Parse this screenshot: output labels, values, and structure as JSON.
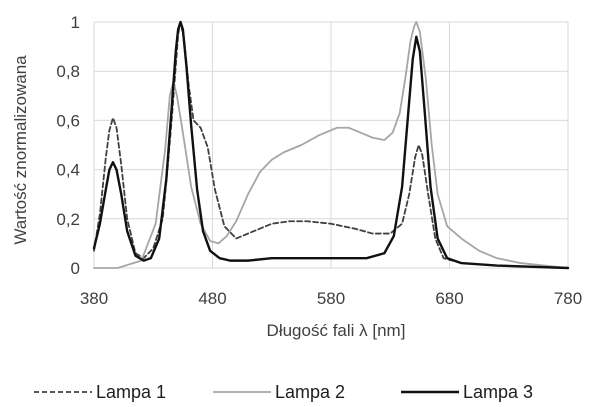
{
  "chart_data": {
    "type": "line",
    "title": "",
    "xlabel": "Długość fali λ [nm]",
    "ylabel": "Wartość znormalizowana",
    "xlim": [
      380,
      780
    ],
    "ylim": [
      0,
      1
    ],
    "xticks": [
      380,
      480,
      580,
      680,
      780
    ],
    "xtick_labels": [
      "380",
      "480",
      "580",
      "680",
      "780"
    ],
    "yticks": [
      0,
      0.2,
      0.4,
      0.6,
      0.8,
      1
    ],
    "ytick_labels": [
      "0",
      "0,2",
      "0,4",
      "0,6",
      "0,8",
      "1"
    ],
    "grid": true,
    "legend_position": "bottom",
    "series": [
      {
        "name": "Lampa 1",
        "color": "#404040",
        "dash": "dashed",
        "points": [
          [
            380,
            0.07
          ],
          [
            385,
            0.22
          ],
          [
            390,
            0.45
          ],
          [
            393,
            0.56
          ],
          [
            396,
            0.61
          ],
          [
            399,
            0.57
          ],
          [
            403,
            0.42
          ],
          [
            408,
            0.2
          ],
          [
            415,
            0.06
          ],
          [
            422,
            0.04
          ],
          [
            430,
            0.08
          ],
          [
            438,
            0.2
          ],
          [
            442,
            0.4
          ],
          [
            446,
            0.63
          ],
          [
            449,
            0.82
          ],
          [
            451,
            0.95
          ],
          [
            453,
            1.0
          ],
          [
            456,
            0.93
          ],
          [
            460,
            0.74
          ],
          [
            464,
            0.6
          ],
          [
            470,
            0.57
          ],
          [
            476,
            0.49
          ],
          [
            482,
            0.32
          ],
          [
            490,
            0.17
          ],
          [
            500,
            0.12
          ],
          [
            515,
            0.15
          ],
          [
            530,
            0.18
          ],
          [
            545,
            0.19
          ],
          [
            560,
            0.19
          ],
          [
            580,
            0.18
          ],
          [
            600,
            0.16
          ],
          [
            615,
            0.14
          ],
          [
            630,
            0.14
          ],
          [
            640,
            0.18
          ],
          [
            646,
            0.3
          ],
          [
            651,
            0.45
          ],
          [
            654,
            0.5
          ],
          [
            657,
            0.46
          ],
          [
            662,
            0.3
          ],
          [
            668,
            0.12
          ],
          [
            675,
            0.04
          ],
          [
            690,
            0.02
          ],
          [
            720,
            0.01
          ],
          [
            780,
            0.0
          ]
        ]
      },
      {
        "name": "Lampa 2",
        "color": "#a6a6a6",
        "dash": "solid",
        "points": [
          [
            380,
            0.0
          ],
          [
            400,
            0.0
          ],
          [
            420,
            0.03
          ],
          [
            432,
            0.18
          ],
          [
            440,
            0.48
          ],
          [
            444,
            0.7
          ],
          [
            447,
            0.76
          ],
          [
            450,
            0.7
          ],
          [
            455,
            0.55
          ],
          [
            462,
            0.33
          ],
          [
            470,
            0.18
          ],
          [
            478,
            0.11
          ],
          [
            485,
            0.1
          ],
          [
            492,
            0.13
          ],
          [
            500,
            0.19
          ],
          [
            510,
            0.3
          ],
          [
            520,
            0.39
          ],
          [
            530,
            0.44
          ],
          [
            540,
            0.47
          ],
          [
            555,
            0.5
          ],
          [
            570,
            0.54
          ],
          [
            585,
            0.57
          ],
          [
            595,
            0.57
          ],
          [
            605,
            0.55
          ],
          [
            615,
            0.53
          ],
          [
            625,
            0.52
          ],
          [
            632,
            0.55
          ],
          [
            638,
            0.63
          ],
          [
            643,
            0.78
          ],
          [
            647,
            0.92
          ],
          [
            650,
            0.98
          ],
          [
            652,
            1.0
          ],
          [
            655,
            0.96
          ],
          [
            660,
            0.77
          ],
          [
            665,
            0.5
          ],
          [
            670,
            0.3
          ],
          [
            678,
            0.17
          ],
          [
            690,
            0.12
          ],
          [
            705,
            0.07
          ],
          [
            720,
            0.04
          ],
          [
            740,
            0.02
          ],
          [
            760,
            0.01
          ],
          [
            780,
            0.0
          ]
        ]
      },
      {
        "name": "Lampa 3",
        "color": "#111111",
        "dash": "solid",
        "points": [
          [
            380,
            0.08
          ],
          [
            385,
            0.18
          ],
          [
            390,
            0.32
          ],
          [
            393,
            0.4
          ],
          [
            396,
            0.43
          ],
          [
            399,
            0.4
          ],
          [
            403,
            0.3
          ],
          [
            408,
            0.15
          ],
          [
            415,
            0.05
          ],
          [
            422,
            0.03
          ],
          [
            428,
            0.04
          ],
          [
            435,
            0.12
          ],
          [
            441,
            0.36
          ],
          [
            446,
            0.68
          ],
          [
            449,
            0.88
          ],
          [
            451,
            0.97
          ],
          [
            453,
            1.0
          ],
          [
            455,
            0.97
          ],
          [
            458,
            0.82
          ],
          [
            462,
            0.58
          ],
          [
            467,
            0.32
          ],
          [
            472,
            0.15
          ],
          [
            478,
            0.07
          ],
          [
            486,
            0.04
          ],
          [
            495,
            0.03
          ],
          [
            510,
            0.03
          ],
          [
            530,
            0.04
          ],
          [
            560,
            0.04
          ],
          [
            590,
            0.04
          ],
          [
            610,
            0.04
          ],
          [
            625,
            0.06
          ],
          [
            633,
            0.13
          ],
          [
            640,
            0.33
          ],
          [
            645,
            0.62
          ],
          [
            649,
            0.85
          ],
          [
            652,
            0.94
          ],
          [
            655,
            0.88
          ],
          [
            659,
            0.64
          ],
          [
            664,
            0.33
          ],
          [
            670,
            0.12
          ],
          [
            678,
            0.04
          ],
          [
            690,
            0.02
          ],
          [
            720,
            0.01
          ],
          [
            780,
            0.0
          ]
        ]
      }
    ]
  }
}
